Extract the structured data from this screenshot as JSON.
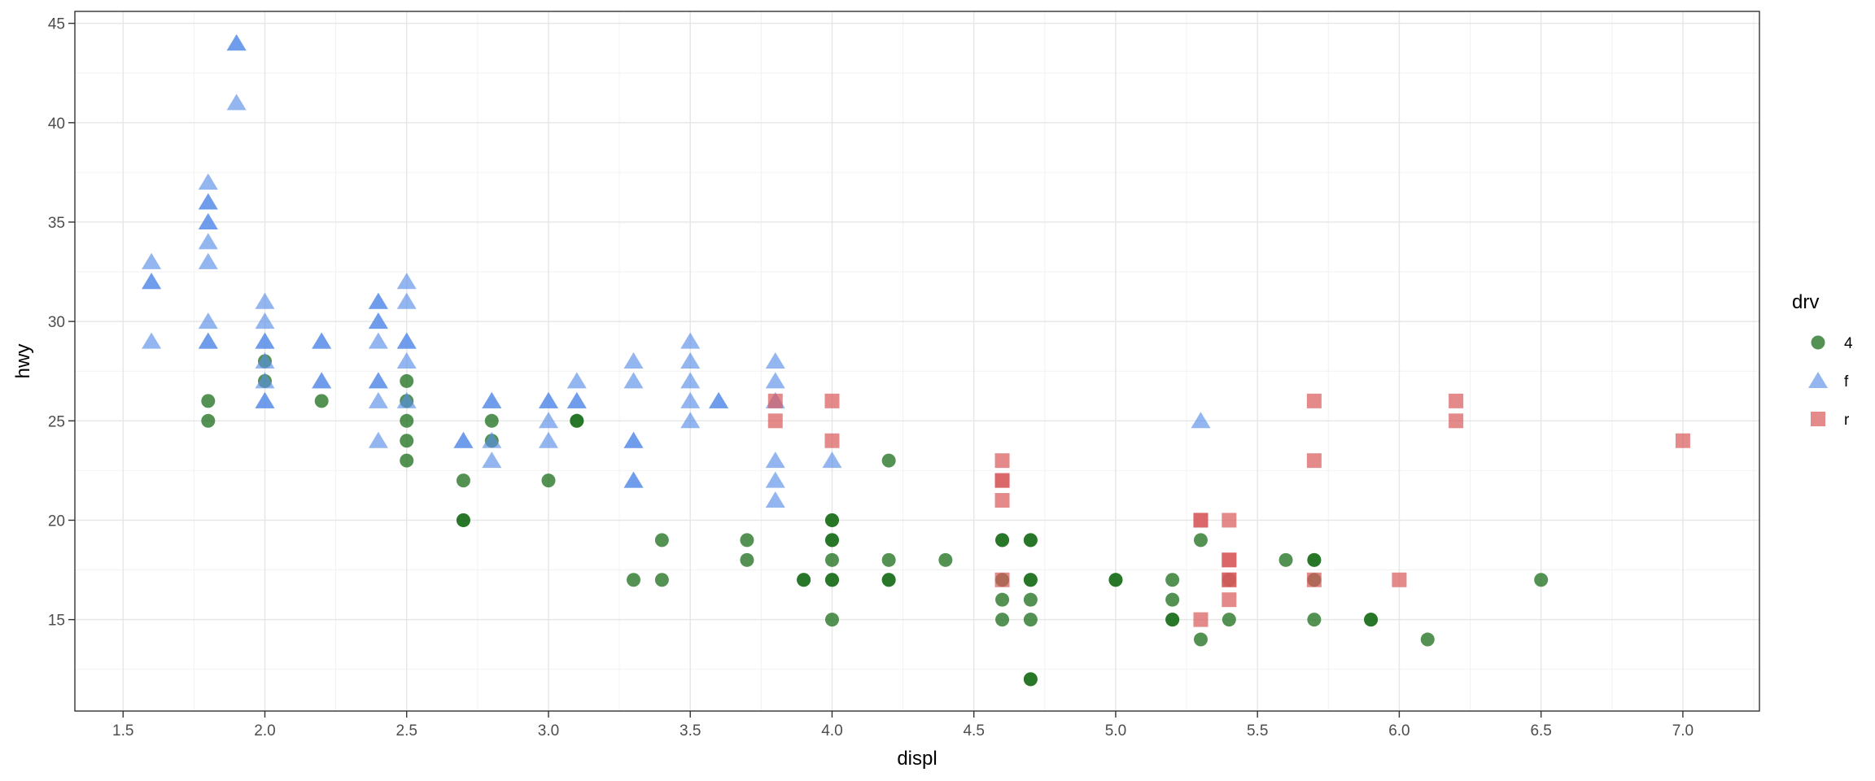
{
  "chart_data": {
    "type": "scatter",
    "title": "",
    "xlabel": "displ",
    "ylabel": "hwy",
    "xlim": [
      1.33,
      7.27
    ],
    "ylim": [
      10.4,
      45.6
    ],
    "x_ticks": [
      "1.5",
      "2.0",
      "2.5",
      "3.0",
      "3.5",
      "4.0",
      "4.5",
      "5.0",
      "5.5",
      "6.0",
      "6.5",
      "7.0"
    ],
    "y_ticks": [
      "15",
      "20",
      "25",
      "30",
      "35",
      "40",
      "45"
    ],
    "grid": true,
    "legend": {
      "title": "drv",
      "position": "right"
    },
    "series": [
      {
        "name": "4",
        "shape": "circle",
        "color": "#1a6e1a",
        "points": [
          [
            1.8,
            26
          ],
          [
            1.8,
            25
          ],
          [
            2.0,
            28
          ],
          [
            2.0,
            27
          ],
          [
            2.2,
            26
          ],
          [
            2.5,
            27
          ],
          [
            2.5,
            26
          ],
          [
            2.5,
            25
          ],
          [
            2.5,
            24
          ],
          [
            2.5,
            23
          ],
          [
            2.7,
            22
          ],
          [
            2.7,
            20
          ],
          [
            2.7,
            20
          ],
          [
            2.8,
            25
          ],
          [
            2.8,
            24
          ],
          [
            3.0,
            22
          ],
          [
            3.1,
            25
          ],
          [
            3.1,
            25
          ],
          [
            3.3,
            17
          ],
          [
            3.4,
            19
          ],
          [
            3.4,
            17
          ],
          [
            3.7,
            19
          ],
          [
            3.7,
            18
          ],
          [
            3.9,
            17
          ],
          [
            3.9,
            17
          ],
          [
            4.0,
            20
          ],
          [
            4.0,
            20
          ],
          [
            4.0,
            19
          ],
          [
            4.0,
            19
          ],
          [
            4.0,
            18
          ],
          [
            4.0,
            17
          ],
          [
            4.0,
            17
          ],
          [
            4.0,
            15
          ],
          [
            4.2,
            23
          ],
          [
            4.2,
            18
          ],
          [
            4.2,
            17
          ],
          [
            4.2,
            17
          ],
          [
            4.4,
            18
          ],
          [
            4.6,
            19
          ],
          [
            4.6,
            19
          ],
          [
            4.6,
            17
          ],
          [
            4.6,
            16
          ],
          [
            4.6,
            15
          ],
          [
            4.7,
            19
          ],
          [
            4.7,
            19
          ],
          [
            4.7,
            17
          ],
          [
            4.7,
            17
          ],
          [
            4.7,
            16
          ],
          [
            4.7,
            15
          ],
          [
            4.7,
            12
          ],
          [
            4.7,
            12
          ],
          [
            5.0,
            17
          ],
          [
            5.0,
            17
          ],
          [
            5.2,
            17
          ],
          [
            5.2,
            16
          ],
          [
            5.2,
            15
          ],
          [
            5.2,
            15
          ],
          [
            5.3,
            19
          ],
          [
            5.3,
            14
          ],
          [
            5.4,
            17
          ],
          [
            5.4,
            15
          ],
          [
            5.6,
            18
          ],
          [
            5.7,
            18
          ],
          [
            5.7,
            18
          ],
          [
            5.7,
            17
          ],
          [
            5.7,
            15
          ],
          [
            5.9,
            15
          ],
          [
            5.9,
            15
          ],
          [
            6.1,
            14
          ],
          [
            6.5,
            17
          ]
        ]
      },
      {
        "name": "f",
        "shape": "triangle",
        "color": "#5b8fe8",
        "points": [
          [
            1.6,
            33
          ],
          [
            1.6,
            32
          ],
          [
            1.6,
            32
          ],
          [
            1.6,
            29
          ],
          [
            1.8,
            37
          ],
          [
            1.8,
            36
          ],
          [
            1.8,
            36
          ],
          [
            1.8,
            35
          ],
          [
            1.8,
            35
          ],
          [
            1.8,
            34
          ],
          [
            1.8,
            33
          ],
          [
            1.8,
            30
          ],
          [
            1.8,
            29
          ],
          [
            1.8,
            29
          ],
          [
            1.9,
            44
          ],
          [
            1.9,
            44
          ],
          [
            1.9,
            41
          ],
          [
            2.0,
            31
          ],
          [
            2.0,
            30
          ],
          [
            2.0,
            29
          ],
          [
            2.0,
            29
          ],
          [
            2.0,
            28
          ],
          [
            2.0,
            27
          ],
          [
            2.0,
            26
          ],
          [
            2.0,
            26
          ],
          [
            2.2,
            29
          ],
          [
            2.2,
            29
          ],
          [
            2.2,
            27
          ],
          [
            2.2,
            27
          ],
          [
            2.4,
            31
          ],
          [
            2.4,
            31
          ],
          [
            2.4,
            30
          ],
          [
            2.4,
            30
          ],
          [
            2.4,
            29
          ],
          [
            2.4,
            27
          ],
          [
            2.4,
            27
          ],
          [
            2.4,
            26
          ],
          [
            2.4,
            24
          ],
          [
            2.5,
            32
          ],
          [
            2.5,
            31
          ],
          [
            2.5,
            29
          ],
          [
            2.5,
            29
          ],
          [
            2.5,
            28
          ],
          [
            2.5,
            26
          ],
          [
            2.7,
            24
          ],
          [
            2.7,
            24
          ],
          [
            2.8,
            26
          ],
          [
            2.8,
            26
          ],
          [
            2.8,
            24
          ],
          [
            2.8,
            23
          ],
          [
            3.0,
            26
          ],
          [
            3.0,
            26
          ],
          [
            3.0,
            25
          ],
          [
            3.0,
            24
          ],
          [
            3.1,
            27
          ],
          [
            3.1,
            26
          ],
          [
            3.1,
            26
          ],
          [
            3.3,
            28
          ],
          [
            3.3,
            27
          ],
          [
            3.3,
            24
          ],
          [
            3.3,
            24
          ],
          [
            3.3,
            22
          ],
          [
            3.3,
            22
          ],
          [
            3.5,
            29
          ],
          [
            3.5,
            28
          ],
          [
            3.5,
            27
          ],
          [
            3.5,
            26
          ],
          [
            3.5,
            25
          ],
          [
            3.6,
            26
          ],
          [
            3.6,
            26
          ],
          [
            3.8,
            28
          ],
          [
            3.8,
            27
          ],
          [
            3.8,
            26
          ],
          [
            3.8,
            23
          ],
          [
            3.8,
            22
          ],
          [
            3.8,
            21
          ],
          [
            4.0,
            23
          ],
          [
            5.3,
            25
          ]
        ]
      },
      {
        "name": "r",
        "shape": "square",
        "color": "#d9595a",
        "points": [
          [
            3.8,
            26
          ],
          [
            3.8,
            25
          ],
          [
            4.0,
            26
          ],
          [
            4.0,
            24
          ],
          [
            4.6,
            23
          ],
          [
            4.6,
            22
          ],
          [
            4.6,
            22
          ],
          [
            4.6,
            21
          ],
          [
            4.6,
            17
          ],
          [
            5.3,
            20
          ],
          [
            5.3,
            20
          ],
          [
            5.3,
            15
          ],
          [
            5.4,
            20
          ],
          [
            5.4,
            18
          ],
          [
            5.4,
            18
          ],
          [
            5.4,
            17
          ],
          [
            5.4,
            17
          ],
          [
            5.4,
            16
          ],
          [
            5.7,
            26
          ],
          [
            5.7,
            23
          ],
          [
            5.7,
            17
          ],
          [
            6.0,
            17
          ],
          [
            6.2,
            26
          ],
          [
            6.2,
            25
          ],
          [
            7.0,
            24
          ]
        ]
      }
    ]
  }
}
